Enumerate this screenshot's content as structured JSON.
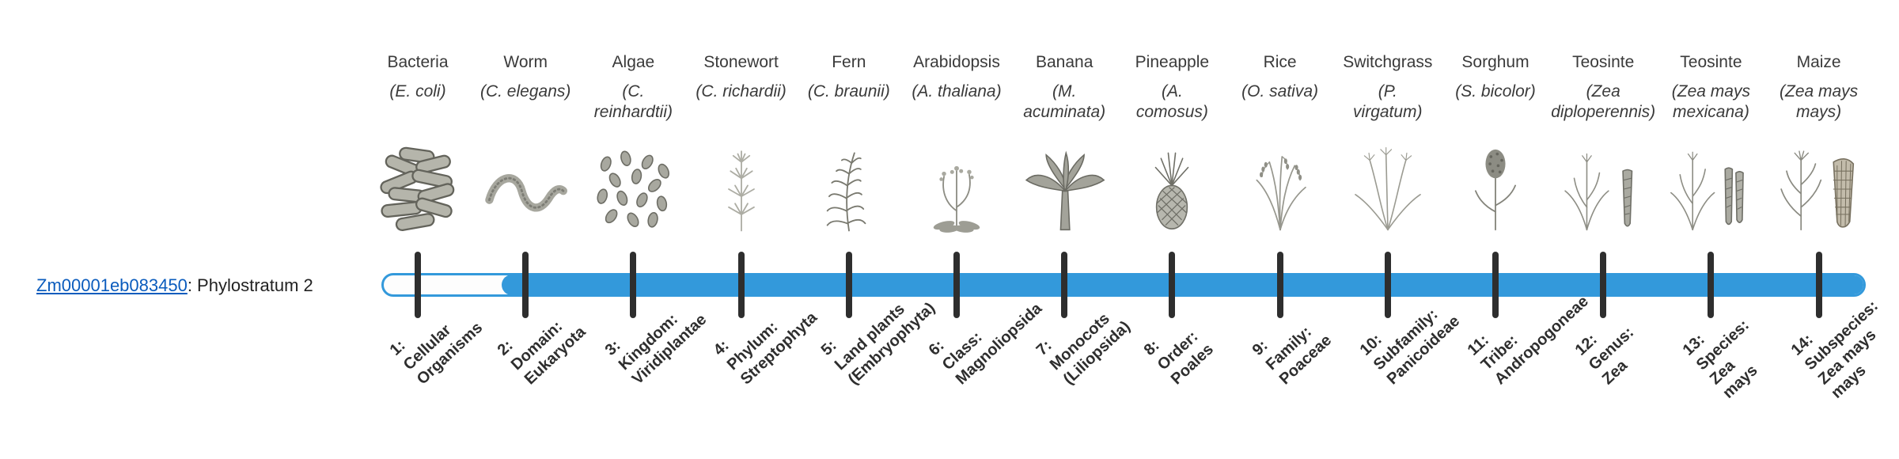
{
  "gene": {
    "id": "Zm00001eb083450",
    "label_suffix": ": Phylostratum 2",
    "phylostratum": 2
  },
  "colors": {
    "bar_fill": "#3399db",
    "tick": "#2e2e2e",
    "link": "#0b5cbd",
    "text": "#3a3a3a"
  },
  "columns": [
    {
      "common_name": "Bacteria",
      "latin_name": "(E. coli)",
      "icon": "bacteria-icon",
      "stratum_label": "1:\nCellular\nOrganisms"
    },
    {
      "common_name": "Worm",
      "latin_name": "(C. elegans)",
      "icon": "worm-icon",
      "stratum_label": "2:\nDomain:\nEukaryota"
    },
    {
      "common_name": "Algae",
      "latin_name": "(C.\nreinhardtii)",
      "icon": "algae-icon",
      "stratum_label": "3:\nKingdom:\nViridiplantae"
    },
    {
      "common_name": "Stonewort",
      "latin_name": "(C. richardii)",
      "icon": "stonewort-icon",
      "stratum_label": "4:\nPhylum:\nStreptophyta"
    },
    {
      "common_name": "Fern",
      "latin_name": "(C. braunii)",
      "icon": "fern-icon",
      "stratum_label": "5:\nLand plants\n(Embryophyta)"
    },
    {
      "common_name": "Arabidopsis",
      "latin_name": "(A. thaliana)",
      "icon": "arabidopsis-icon",
      "stratum_label": "6:\nClass:\nMagnoliopsida"
    },
    {
      "common_name": "Banana",
      "latin_name": "(M.\nacuminata)",
      "icon": "banana-icon",
      "stratum_label": "7:\nMonocots\n(Liliopsida)"
    },
    {
      "common_name": "Pineapple",
      "latin_name": "(A.\ncomosus)",
      "icon": "pineapple-icon",
      "stratum_label": "8:\nOrder:\nPoales"
    },
    {
      "common_name": "Rice",
      "latin_name": "(O. sativa)",
      "icon": "rice-icon",
      "stratum_label": "9:\nFamily:\nPoaceae"
    },
    {
      "common_name": "Switchgrass",
      "latin_name": "(P.\nvirgatum)",
      "icon": "switchgrass-icon",
      "stratum_label": "10:\nSubfamily:\nPanicoideae"
    },
    {
      "common_name": "Sorghum",
      "latin_name": "(S. bicolor)",
      "icon": "sorghum-icon",
      "stratum_label": "11:\nTribe:\nAndropogoneae"
    },
    {
      "common_name": "Teosinte",
      "latin_name": "(Zea\ndiploperennis)",
      "icon": "teosinte-diploperennis-icon",
      "stratum_label": "12:\nGenus:\nZea"
    },
    {
      "common_name": "Teosinte",
      "latin_name": "(Zea mays\nmexicana)",
      "icon": "teosinte-mexicana-icon",
      "stratum_label": "13:\nSpecies:\nZea\nmays"
    },
    {
      "common_name": "Maize",
      "latin_name": "(Zea mays\nmays)",
      "icon": "maize-icon",
      "stratum_label": "14:\nSubspecies:\nZea mays\nmays"
    }
  ]
}
